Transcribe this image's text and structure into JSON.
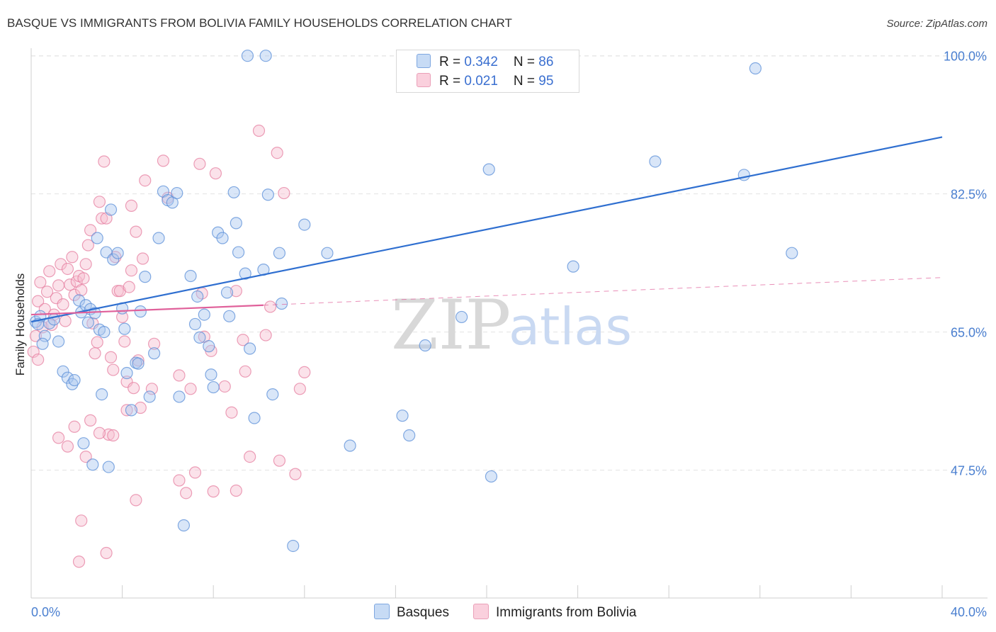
{
  "title": "BASQUE VS IMMIGRANTS FROM BOLIVIA FAMILY HOUSEHOLDS CORRELATION CHART",
  "source": "Source: ZipAtlas.com",
  "watermark": {
    "zip": "ZIP",
    "atlas": "atlas"
  },
  "legend": {
    "rows": [
      {
        "r_label": "R = ",
        "r_value": "0.342",
        "n_label": "N = ",
        "n_value": "86"
      },
      {
        "r_label": "R = ",
        "r_value": "0.021",
        "n_label": "N = ",
        "n_value": "95"
      }
    ]
  },
  "bottom_legend": [
    "Basques",
    "Immigrants from Bolivia"
  ],
  "colors": {
    "blue_fill": "#aac8f0",
    "blue_stroke": "#5b8fd8",
    "blue_line": "#2f6fd0",
    "pink_fill": "#f6bfd0",
    "pink_stroke": "#e57fa0",
    "pink_line": "#e0609a",
    "grid": "#e3e3e3",
    "tick_text": "#4a7fd0"
  },
  "chart_data": {
    "type": "scatter",
    "title": "BASQUE VS IMMIGRANTS FROM BOLIVIA FAMILY HOUSEHOLDS CORRELATION CHART",
    "xlabel": "",
    "ylabel": "Family Households",
    "xlim": [
      0,
      40
    ],
    "ylim": [
      31.3,
      101.5
    ],
    "x_tick_labels": [
      "0.0%",
      "40.0%"
    ],
    "y_ticks": [
      47.5,
      65.0,
      82.5,
      100.0
    ],
    "y_tick_labels": [
      "47.5%",
      "65.0%",
      "82.5%",
      "100.0%"
    ],
    "grid": true,
    "series": [
      {
        "name": "Basques",
        "color": "#5b8fd8",
        "trend": {
          "x": [
            0,
            40
          ],
          "y": [
            66.3,
            89.7
          ],
          "dashed_from": null
        },
        "points": [
          [
            0.2,
            66.3
          ],
          [
            0.4,
            67.0
          ],
          [
            0.6,
            64.5
          ],
          [
            0.8,
            66.1
          ],
          [
            1.0,
            66.6
          ],
          [
            1.2,
            63.8
          ],
          [
            0.5,
            63.5
          ],
          [
            0.3,
            66.0
          ],
          [
            1.4,
            60.0
          ],
          [
            1.6,
            59.2
          ],
          [
            1.8,
            58.4
          ],
          [
            1.9,
            58.9
          ],
          [
            2.1,
            69.0
          ],
          [
            2.2,
            67.5
          ],
          [
            2.4,
            68.4
          ],
          [
            2.5,
            66.2
          ],
          [
            2.6,
            67.9
          ],
          [
            2.8,
            67.4
          ],
          [
            3.0,
            65.3
          ],
          [
            3.2,
            65.0
          ],
          [
            2.9,
            76.9
          ],
          [
            3.3,
            75.1
          ],
          [
            3.5,
            80.5
          ],
          [
            3.6,
            74.2
          ],
          [
            3.8,
            75.0
          ],
          [
            4.0,
            68.0
          ],
          [
            4.1,
            65.4
          ],
          [
            4.2,
            59.8
          ],
          [
            4.4,
            55.1
          ],
          [
            4.6,
            61.1
          ],
          [
            4.7,
            61.0
          ],
          [
            4.8,
            67.6
          ],
          [
            5.0,
            72.0
          ],
          [
            5.2,
            56.8
          ],
          [
            5.4,
            62.3
          ],
          [
            5.6,
            76.9
          ],
          [
            5.8,
            82.8
          ],
          [
            6.0,
            81.7
          ],
          [
            6.2,
            81.4
          ],
          [
            6.4,
            82.6
          ],
          [
            6.5,
            56.8
          ],
          [
            6.7,
            40.5
          ],
          [
            7.0,
            72.1
          ],
          [
            7.2,
            66.0
          ],
          [
            7.3,
            69.5
          ],
          [
            7.4,
            64.3
          ],
          [
            7.6,
            67.2
          ],
          [
            7.8,
            63.2
          ],
          [
            7.9,
            59.6
          ],
          [
            8.0,
            58.0
          ],
          [
            8.2,
            77.6
          ],
          [
            8.4,
            76.9
          ],
          [
            8.6,
            70.0
          ],
          [
            8.7,
            67.0
          ],
          [
            8.9,
            82.7
          ],
          [
            9.0,
            78.8
          ],
          [
            9.1,
            75.1
          ],
          [
            9.4,
            72.4
          ],
          [
            9.6,
            62.9
          ],
          [
            9.8,
            54.1
          ],
          [
            3.4,
            47.9
          ],
          [
            2.3,
            50.9
          ],
          [
            3.1,
            57.1
          ],
          [
            2.7,
            48.2
          ],
          [
            11.0,
            68.6
          ],
          [
            12.0,
            78.6
          ],
          [
            13.0,
            75.0
          ],
          [
            14.0,
            50.6
          ],
          [
            16.3,
            54.4
          ],
          [
            16.6,
            51.9
          ],
          [
            9.5,
            100.0
          ],
          [
            10.3,
            100.0
          ],
          [
            10.9,
            75.0
          ],
          [
            11.5,
            37.9
          ],
          [
            10.4,
            82.4
          ],
          [
            10.2,
            72.9
          ],
          [
            10.6,
            57.1
          ],
          [
            17.3,
            63.3
          ],
          [
            18.9,
            66.9
          ],
          [
            20.1,
            85.6
          ],
          [
            20.2,
            46.7
          ],
          [
            23.8,
            73.3
          ],
          [
            27.4,
            86.6
          ],
          [
            31.3,
            84.9
          ],
          [
            31.8,
            98.4
          ],
          [
            33.4,
            75.0
          ]
        ]
      },
      {
        "name": "Immigrants from Bolivia",
        "color": "#e57fa0",
        "trend": {
          "x": [
            0,
            40
          ],
          "y": [
            67.2,
            71.9
          ],
          "dashed_from": 10.2
        },
        "points": [
          [
            0.1,
            62.5
          ],
          [
            0.2,
            64.5
          ],
          [
            0.3,
            68.9
          ],
          [
            0.4,
            71.3
          ],
          [
            0.5,
            65.6
          ],
          [
            0.6,
            67.9
          ],
          [
            0.7,
            70.1
          ],
          [
            0.8,
            72.7
          ],
          [
            0.9,
            65.9
          ],
          [
            1.0,
            67.2
          ],
          [
            1.1,
            69.3
          ],
          [
            1.2,
            70.9
          ],
          [
            1.3,
            73.6
          ],
          [
            1.4,
            68.5
          ],
          [
            1.5,
            66.4
          ],
          [
            1.6,
            73.0
          ],
          [
            1.7,
            71.0
          ],
          [
            1.8,
            74.5
          ],
          [
            1.9,
            69.7
          ],
          [
            2.0,
            71.4
          ],
          [
            2.1,
            72.1
          ],
          [
            2.2,
            70.3
          ],
          [
            2.3,
            71.8
          ],
          [
            2.4,
            73.6
          ],
          [
            2.5,
            76.0
          ],
          [
            2.6,
            77.9
          ],
          [
            2.7,
            66.1
          ],
          [
            2.8,
            62.3
          ],
          [
            2.9,
            63.7
          ],
          [
            3.0,
            81.5
          ],
          [
            3.1,
            79.4
          ],
          [
            3.2,
            86.6
          ],
          [
            3.3,
            79.4
          ],
          [
            3.4,
            52.0
          ],
          [
            3.5,
            61.8
          ],
          [
            3.6,
            60.2
          ],
          [
            3.7,
            74.5
          ],
          [
            3.8,
            70.2
          ],
          [
            3.9,
            70.2
          ],
          [
            4.0,
            66.9
          ],
          [
            4.1,
            63.8
          ],
          [
            4.2,
            58.7
          ],
          [
            4.3,
            70.7
          ],
          [
            4.4,
            72.8
          ],
          [
            4.5,
            57.9
          ],
          [
            4.6,
            77.7
          ],
          [
            4.7,
            61.4
          ],
          [
            4.8,
            55.4
          ],
          [
            1.2,
            51.6
          ],
          [
            1.6,
            50.5
          ],
          [
            1.9,
            53.0
          ],
          [
            2.4,
            49.2
          ],
          [
            2.2,
            41.1
          ],
          [
            2.1,
            35.9
          ],
          [
            2.6,
            53.8
          ],
          [
            3.0,
            52.2
          ],
          [
            3.6,
            51.9
          ],
          [
            4.2,
            55.1
          ],
          [
            5.0,
            84.2
          ],
          [
            5.3,
            57.8
          ],
          [
            5.4,
            63.5
          ],
          [
            4.9,
            74.3
          ],
          [
            4.4,
            81.0
          ],
          [
            5.8,
            86.7
          ],
          [
            6.0,
            82.0
          ],
          [
            6.5,
            59.5
          ],
          [
            7.0,
            57.8
          ],
          [
            7.2,
            47.2
          ],
          [
            7.4,
            86.3
          ],
          [
            7.5,
            69.9
          ],
          [
            7.6,
            64.4
          ],
          [
            7.9,
            62.6
          ],
          [
            8.1,
            85.1
          ],
          [
            8.5,
            58.1
          ],
          [
            8.8,
            54.8
          ],
          [
            9.0,
            70.2
          ],
          [
            9.3,
            64.0
          ],
          [
            9.4,
            60.0
          ],
          [
            9.6,
            49.2
          ],
          [
            10.0,
            90.5
          ],
          [
            10.8,
            87.7
          ],
          [
            10.3,
            64.6
          ],
          [
            10.5,
            68.2
          ],
          [
            10.9,
            48.7
          ],
          [
            11.1,
            82.6
          ],
          [
            11.6,
            47.0
          ],
          [
            11.8,
            57.8
          ],
          [
            12.0,
            59.9
          ],
          [
            8.0,
            44.8
          ],
          [
            9.0,
            44.9
          ],
          [
            6.5,
            46.2
          ],
          [
            6.8,
            44.6
          ],
          [
            3.3,
            37.0
          ],
          [
            4.6,
            43.7
          ],
          [
            0.3,
            61.5
          ]
        ]
      }
    ]
  }
}
